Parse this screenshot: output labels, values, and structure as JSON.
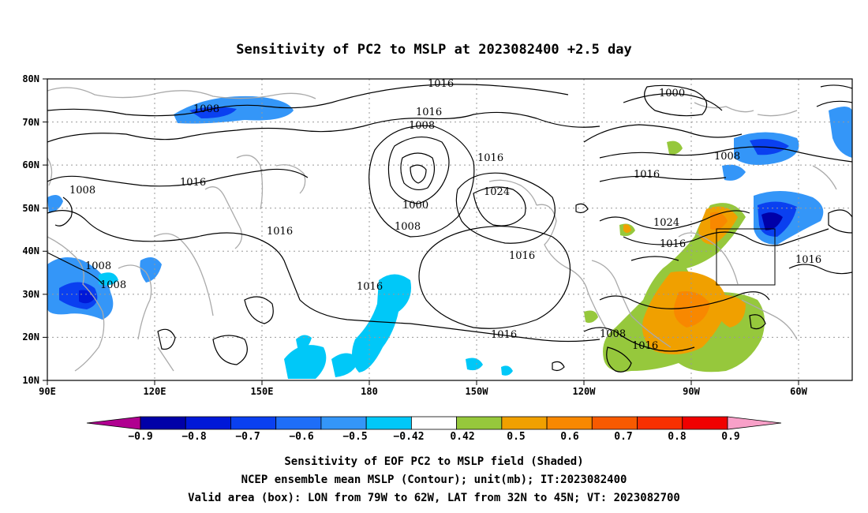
{
  "title": "Sensitivity of PC2 to MSLP at 2023082400 +2.5 day",
  "map": {
    "lat_labels": [
      "80N",
      "70N",
      "60N",
      "50N",
      "40N",
      "30N",
      "20N",
      "10N"
    ],
    "lon_labels": [
      "90E",
      "120E",
      "150E",
      "180",
      "150W",
      "120W",
      "90W",
      "60W"
    ],
    "contour_labels": [
      {
        "id": "c1",
        "text": "1016"
      },
      {
        "id": "c2",
        "text": "1016"
      },
      {
        "id": "c3",
        "text": "1008"
      },
      {
        "id": "c4",
        "text": "1008"
      },
      {
        "id": "c5",
        "text": "1016"
      },
      {
        "id": "c6",
        "text": "1000"
      },
      {
        "id": "c7",
        "text": "1008"
      },
      {
        "id": "c8",
        "text": "1016"
      },
      {
        "id": "c9",
        "text": "1016"
      },
      {
        "id": "c10",
        "text": "1024"
      },
      {
        "id": "c11",
        "text": "1000"
      },
      {
        "id": "c12",
        "text": "1008"
      },
      {
        "id": "c13",
        "text": "1008"
      },
      {
        "id": "c14",
        "text": "1016"
      },
      {
        "id": "c15",
        "text": "1016"
      },
      {
        "id": "c16",
        "text": "1008"
      },
      {
        "id": "c17",
        "text": "1008"
      },
      {
        "id": "c18",
        "text": "1016"
      },
      {
        "id": "c19",
        "text": "1016"
      },
      {
        "id": "c20",
        "text": "1024"
      },
      {
        "id": "c21",
        "text": "1016"
      },
      {
        "id": "c22",
        "text": "1016"
      },
      {
        "id": "c23",
        "text": "1008"
      },
      {
        "id": "c24",
        "text": "1016"
      }
    ],
    "valid_box": {
      "lon_min": "79W",
      "lon_max": "62W",
      "lat_min": "32N",
      "lat_max": "45N"
    }
  },
  "colorbar": {
    "colors": [
      "#b00090",
      "#0000a8",
      "#0018d8",
      "#0a40f0",
      "#1e6ef8",
      "#3496f8",
      "#00c8f8",
      "#ffffff",
      "#96c83c",
      "#f0a000",
      "#f88800",
      "#f85a00",
      "#f83000",
      "#f00000",
      "#f8a0c8"
    ],
    "labels": [
      "−0.9",
      "−0.8",
      "−0.7",
      "−0.6",
      "−0.5",
      "−0.42",
      "0.42",
      "0.5",
      "0.6",
      "0.7",
      "0.8",
      "0.9"
    ]
  },
  "caption": {
    "line1": "Sensitivity of EOF PC2 to MSLP field (Shaded)",
    "line2": "NCEP ensemble mean MSLP (Contour); unit(mb); IT:2023082400",
    "line3": "Valid area (box): LON from 79W to 62W, LAT from 32N to 45N; VT: 2023082700"
  }
}
